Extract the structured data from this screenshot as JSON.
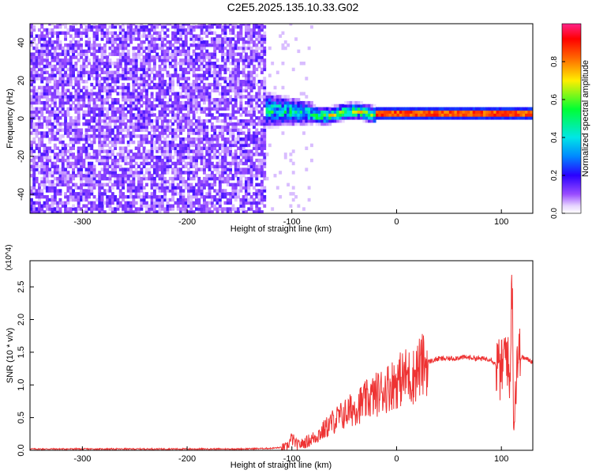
{
  "figure": {
    "title": "C2E5.2025.135.10.33.G02"
  },
  "chart_data": [
    {
      "type": "heatmap",
      "title": "C2E5.2025.135.10.33.G02",
      "xlabel": "Height of straight line (km)",
      "ylabel": "Frequency (Hz)",
      "xlim": [
        -350,
        130
      ],
      "ylim": [
        -50,
        50
      ],
      "xticks": [
        -300,
        -200,
        -100,
        0,
        100
      ],
      "yticks": [
        -40,
        -20,
        0,
        20,
        40
      ],
      "colorbar": {
        "label": "Normalized spectral amplitude",
        "range": [
          0.0,
          1.0
        ],
        "ticks": [
          0.0,
          0.2,
          0.4,
          0.6,
          0.8
        ],
        "colormap": "rainbow (white → purple → blue → cyan → green → yellow → red → magenta)"
      },
      "regions": [
        {
          "x_range": [
            -350,
            -125
          ],
          "frequency_range": [
            -50,
            50
          ],
          "amplitude": "0.0–0.2 (broadband noise)"
        },
        {
          "x_range": [
            -125,
            -80
          ],
          "frequency_center": 4,
          "frequency_spread": 12,
          "amplitude": "0.1–0.6"
        },
        {
          "x_range": [
            -80,
            -20
          ],
          "frequency_center": 2,
          "frequency_spread": 6,
          "amplitude": "0.3–0.7"
        },
        {
          "x_range": [
            -20,
            130
          ],
          "frequency_center": 2,
          "frequency_spread": 3,
          "amplitude": "0.8–1.0"
        }
      ]
    },
    {
      "type": "line",
      "xlabel": "Height of straight line (km)",
      "ylabel": "SNR (10 * v/v)",
      "y_multiplier": "(x10^4)",
      "xlim": [
        -350,
        130
      ],
      "ylim": [
        0.0,
        2.9
      ],
      "xticks": [
        -300,
        -200,
        -100,
        0,
        100
      ],
      "yticks": [
        0.0,
        0.5,
        1.0,
        1.5,
        2.0,
        2.5
      ],
      "color": "#ee3333",
      "series": [
        {
          "x": [
            -350,
            -300,
            -250,
            -200,
            -150,
            -120,
            -105,
            -100,
            -95,
            -90,
            -80,
            -70,
            -60,
            -50,
            -40,
            -30,
            -20,
            -10,
            0,
            10,
            15,
            20,
            30,
            40,
            50,
            60,
            70,
            80,
            90,
            95,
            100,
            105,
            108,
            110,
            112,
            115,
            120,
            130
          ],
          "y": [
            0.02,
            0.02,
            0.02,
            0.02,
            0.02,
            0.03,
            0.05,
            0.18,
            0.08,
            0.1,
            0.18,
            0.3,
            0.45,
            0.55,
            0.65,
            0.75,
            0.85,
            0.95,
            1.05,
            1.15,
            1.1,
            1.25,
            1.35,
            1.4,
            1.4,
            1.42,
            1.42,
            1.4,
            1.4,
            1.3,
            1.2,
            1.6,
            0.9,
            2.8,
            0.4,
            1.45,
            1.42,
            1.36
          ]
        }
      ]
    }
  ]
}
